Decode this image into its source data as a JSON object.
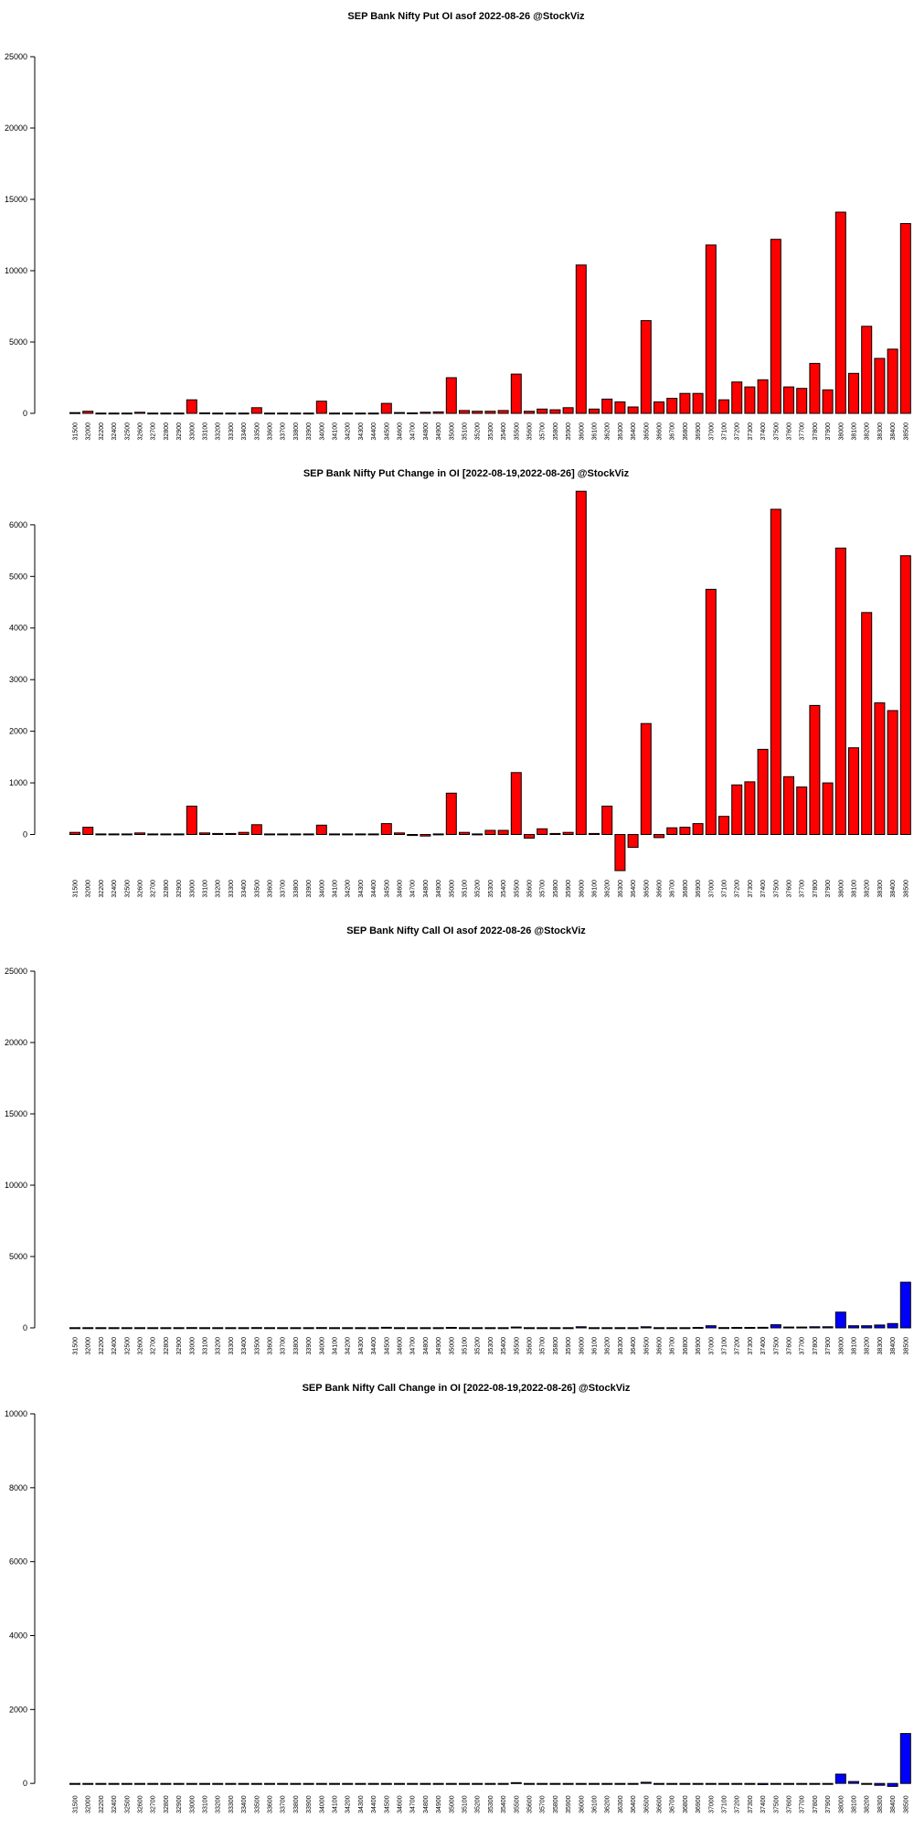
{
  "chart_data": [
    {
      "type": "bar",
      "title": "SEP Bank Nifty Put OI asof 2022-08-26 @StockViz",
      "xlabel": "",
      "ylabel": "",
      "ylim": [
        0,
        25000
      ],
      "yticks": [
        0,
        5000,
        10000,
        15000,
        20000,
        25000
      ],
      "bar_color": "#ff0000",
      "categories": [
        "31500",
        "32000",
        "32200",
        "32400",
        "32500",
        "32600",
        "32700",
        "32800",
        "32900",
        "33000",
        "33100",
        "33200",
        "33300",
        "33400",
        "33500",
        "33600",
        "33700",
        "33800",
        "33900",
        "34000",
        "34100",
        "34200",
        "34300",
        "34400",
        "34500",
        "34600",
        "34700",
        "34800",
        "34900",
        "35000",
        "35100",
        "35200",
        "35300",
        "35400",
        "35500",
        "35600",
        "35700",
        "35800",
        "35900",
        "36000",
        "36100",
        "36200",
        "36300",
        "36400",
        "36500",
        "36600",
        "36700",
        "36800",
        "36900",
        "37000",
        "37100",
        "37200",
        "37300",
        "37400",
        "37500",
        "37600",
        "37700",
        "37800",
        "37900",
        "38000",
        "38100",
        "38200",
        "38300",
        "38400",
        "38500"
      ],
      "values": [
        50,
        150,
        20,
        20,
        20,
        80,
        20,
        20,
        20,
        950,
        30,
        20,
        20,
        20,
        400,
        20,
        20,
        20,
        20,
        850,
        20,
        20,
        20,
        20,
        700,
        60,
        30,
        80,
        100,
        2500,
        200,
        150,
        150,
        200,
        2750,
        150,
        300,
        250,
        400,
        10400,
        300,
        1000,
        800,
        450,
        6500,
        800,
        1050,
        1400,
        1400,
        11800,
        950,
        2200,
        1850,
        2350,
        12200,
        1850,
        1750,
        3500,
        1650,
        14100,
        2800,
        6100,
        3850,
        4500,
        13300
      ]
    },
    {
      "type": "bar",
      "title": "SEP Bank Nifty Put Change in OI [2022-08-19,2022-08-26] @StockViz",
      "xlabel": "",
      "ylabel": "",
      "ylim": [
        -700,
        6600
      ],
      "yticks": [
        0,
        1000,
        2000,
        3000,
        4000,
        5000,
        6000
      ],
      "bar_color": "#ff0000",
      "categories": [
        "31500",
        "32000",
        "32200",
        "32400",
        "32500",
        "32600",
        "32700",
        "32800",
        "32900",
        "33000",
        "33100",
        "33200",
        "33300",
        "33400",
        "33500",
        "33600",
        "33700",
        "33800",
        "33900",
        "34000",
        "34100",
        "34200",
        "34300",
        "34400",
        "34500",
        "34600",
        "34700",
        "34800",
        "34900",
        "35000",
        "35100",
        "35200",
        "35300",
        "35400",
        "35500",
        "35600",
        "35700",
        "35800",
        "35900",
        "36000",
        "36100",
        "36200",
        "36300",
        "36400",
        "36500",
        "36600",
        "36700",
        "36800",
        "36900",
        "37000",
        "37100",
        "37200",
        "37300",
        "37400",
        "37500",
        "37600",
        "37700",
        "37800",
        "37900",
        "38000",
        "38100",
        "38200",
        "38300",
        "38400",
        "38500"
      ],
      "values": [
        40,
        140,
        10,
        10,
        10,
        30,
        10,
        10,
        10,
        550,
        30,
        20,
        20,
        40,
        190,
        10,
        10,
        10,
        10,
        180,
        10,
        10,
        10,
        10,
        210,
        30,
        -20,
        -30,
        10,
        800,
        40,
        10,
        80,
        80,
        1200,
        -70,
        110,
        20,
        40,
        6650,
        20,
        550,
        -700,
        -250,
        2150,
        -60,
        130,
        140,
        210,
        4750,
        350,
        960,
        1020,
        1650,
        6300,
        1120,
        920,
        2500,
        1000,
        5550,
        1680,
        4300,
        2550,
        2400,
        5400
      ]
    },
    {
      "type": "bar",
      "title": "SEP Bank Nifty Call OI asof 2022-08-26 @StockViz",
      "xlabel": "",
      "ylabel": "",
      "ylim": [
        0,
        25000
      ],
      "yticks": [
        0,
        5000,
        10000,
        15000,
        20000,
        25000
      ],
      "bar_color": "#0000ff",
      "categories": [
        "31500",
        "32000",
        "32200",
        "32400",
        "32500",
        "32600",
        "32700",
        "32800",
        "32900",
        "33000",
        "33100",
        "33200",
        "33300",
        "33400",
        "33500",
        "33600",
        "33700",
        "33800",
        "33900",
        "34000",
        "34100",
        "34200",
        "34300",
        "34400",
        "34500",
        "34600",
        "34700",
        "34800",
        "34900",
        "35000",
        "35100",
        "35200",
        "35300",
        "35400",
        "35500",
        "35600",
        "35700",
        "35800",
        "35900",
        "36000",
        "36100",
        "36200",
        "36300",
        "36400",
        "36500",
        "36600",
        "36700",
        "36800",
        "36900",
        "37000",
        "37100",
        "37200",
        "37300",
        "37400",
        "37500",
        "37600",
        "37700",
        "37800",
        "37900",
        "38000",
        "38100",
        "38200",
        "38300",
        "38400",
        "38500"
      ],
      "values": [
        10,
        10,
        10,
        10,
        10,
        10,
        10,
        10,
        10,
        20,
        10,
        10,
        10,
        10,
        20,
        10,
        10,
        10,
        10,
        20,
        10,
        10,
        10,
        10,
        40,
        10,
        10,
        10,
        10,
        30,
        10,
        10,
        10,
        10,
        60,
        10,
        10,
        10,
        10,
        80,
        10,
        10,
        10,
        10,
        80,
        10,
        10,
        10,
        30,
        150,
        20,
        30,
        30,
        40,
        220,
        60,
        60,
        80,
        80,
        1100,
        150,
        150,
        200,
        300,
        3200
      ]
    },
    {
      "type": "bar",
      "title": "SEP Bank Nifty Call Change in OI [2022-08-19,2022-08-26] @StockViz",
      "xlabel": "",
      "ylabel": "",
      "ylim": [
        -120,
        10000
      ],
      "yticks": [
        0,
        2000,
        4000,
        6000,
        8000,
        10000
      ],
      "bar_color": "#0000ff",
      "categories": [
        "31500",
        "32000",
        "32200",
        "32400",
        "32500",
        "32600",
        "32700",
        "32800",
        "32900",
        "33000",
        "33100",
        "33200",
        "33300",
        "33400",
        "33500",
        "33600",
        "33700",
        "33800",
        "33900",
        "34000",
        "34100",
        "34200",
        "34300",
        "34400",
        "34500",
        "34600",
        "34700",
        "34800",
        "34900",
        "35000",
        "35100",
        "35200",
        "35300",
        "35400",
        "35500",
        "35600",
        "35700",
        "35800",
        "35900",
        "36000",
        "36100",
        "36200",
        "36300",
        "36400",
        "36500",
        "36600",
        "36700",
        "36800",
        "36900",
        "37000",
        "37100",
        "37200",
        "37300",
        "37400",
        "37500",
        "37600",
        "37700",
        "37800",
        "37900",
        "38000",
        "38100",
        "38200",
        "38300",
        "38400",
        "38500"
      ],
      "values": [
        0,
        0,
        0,
        0,
        0,
        0,
        0,
        0,
        0,
        0,
        0,
        0,
        0,
        0,
        0,
        0,
        0,
        0,
        0,
        0,
        0,
        0,
        0,
        0,
        0,
        0,
        0,
        0,
        0,
        0,
        0,
        0,
        0,
        0,
        20,
        0,
        0,
        0,
        0,
        0,
        0,
        0,
        0,
        0,
        30,
        0,
        0,
        0,
        0,
        0,
        0,
        0,
        0,
        -30,
        0,
        -20,
        0,
        0,
        0,
        250,
        50,
        -20,
        -50,
        -80,
        1350
      ]
    }
  ]
}
